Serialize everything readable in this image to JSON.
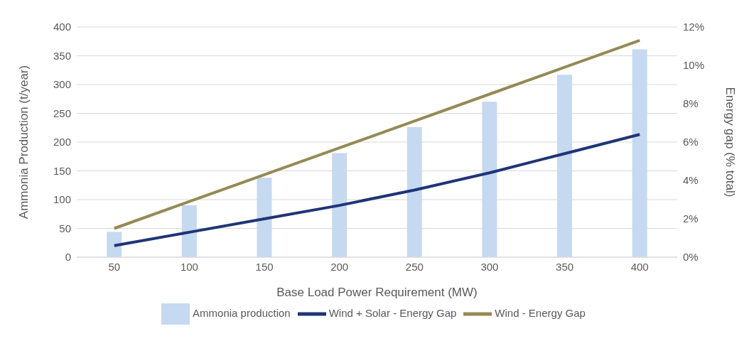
{
  "chart_data": {
    "type": "bar",
    "xlabel": "Base Load Power Requirement (MW)",
    "ylabel": "Ammonia Production (t/year)",
    "y2label": "Energy gap (% total)",
    "categories": [
      "50",
      "100",
      "150",
      "200",
      "250",
      "300",
      "350",
      "400"
    ],
    "series": [
      {
        "name": "Ammonia production",
        "color": "#c5d9f1",
        "values": [
          44,
          90,
          138,
          181,
          226,
          270,
          317,
          361
        ]
      },
      {
        "name": "Wind + Solar - Energy Gap",
        "type": "line",
        "axis": "y2",
        "color": "#1f3576",
        "values": [
          0.6,
          1.3,
          2.0,
          2.7,
          3.5,
          4.4,
          5.4,
          6.4
        ]
      },
      {
        "name": "Wind - Energy Gap",
        "type": "line",
        "axis": "y2",
        "color": "#948a54",
        "values": [
          1.5,
          2.9,
          4.3,
          5.7,
          7.1,
          8.5,
          9.9,
          11.3
        ]
      }
    ],
    "ylim": [
      0,
      400
    ],
    "yticks": [
      0,
      50,
      100,
      150,
      200,
      250,
      300,
      350,
      400
    ],
    "y2lim": [
      0,
      12
    ],
    "y2ticks": [
      {
        "value": 0,
        "label": "0%"
      },
      {
        "value": 2,
        "label": "2%"
      },
      {
        "value": 4,
        "label": "4%"
      },
      {
        "value": 6,
        "label": "6%"
      },
      {
        "value": 8,
        "label": "8%"
      },
      {
        "value": 10,
        "label": "10%"
      },
      {
        "value": 12,
        "label": "12%"
      }
    ],
    "grid": "y",
    "legend": "bottom",
    "marker": "none",
    "line_style": "solid"
  }
}
